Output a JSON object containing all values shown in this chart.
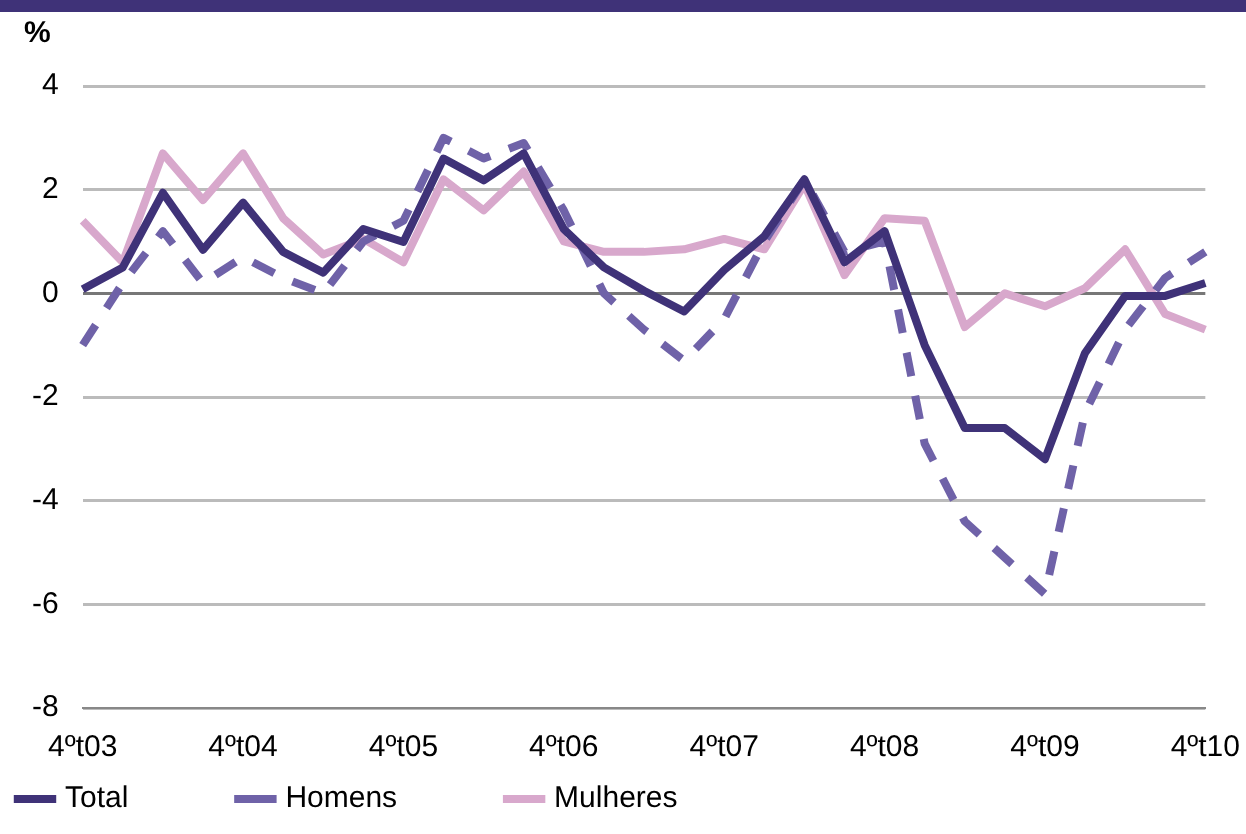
{
  "chart_data": {
    "type": "line",
    "ylabel": "%",
    "categories": [
      "4ºt03",
      null,
      null,
      null,
      "4ºt04",
      null,
      null,
      null,
      "4ºt05",
      null,
      null,
      null,
      "4ºt06",
      null,
      null,
      null,
      "4ºt07",
      null,
      null,
      null,
      "4ºt08",
      null,
      null,
      null,
      "4ºt09",
      null,
      null,
      null,
      "4ºt10"
    ],
    "series": [
      {
        "name": "Total",
        "color": "#3f3278",
        "line_style": "solid",
        "values": [
          0.08,
          0.5,
          1.94,
          0.84,
          1.75,
          0.8,
          0.4,
          1.24,
          0.99,
          2.6,
          2.18,
          2.7,
          1.24,
          0.5,
          0.05,
          -0.35,
          0.45,
          1.1,
          2.2,
          0.6,
          1.2,
          -1.0,
          -2.6,
          -2.6,
          -3.2,
          -1.15,
          -0.05,
          -0.05,
          0.2
        ]
      },
      {
        "name": "Homens",
        "color": "#6f62a8",
        "line_style": "dashed",
        "values": [
          -1.0,
          0.2,
          1.2,
          0.2,
          0.7,
          0.3,
          0.0,
          1.0,
          1.4,
          3.0,
          2.6,
          2.9,
          1.6,
          0.0,
          -0.7,
          -1.3,
          -0.5,
          1.0,
          2.2,
          0.8,
          1.0,
          -2.9,
          -4.4,
          -5.1,
          -5.8,
          -2.3,
          -0.7,
          0.3,
          0.8
        ]
      },
      {
        "name": "Mulheres",
        "color": "#d8a8cc",
        "line_style": "solid",
        "values": [
          1.4,
          0.6,
          2.7,
          1.8,
          2.7,
          1.45,
          0.75,
          1.05,
          0.6,
          2.2,
          1.6,
          2.35,
          1.0,
          0.8,
          0.8,
          0.85,
          1.05,
          0.85,
          2.1,
          0.35,
          1.45,
          1.4,
          -0.65,
          0.0,
          -0.25,
          0.1,
          0.85,
          -0.4,
          -0.7
        ]
      }
    ],
    "ylim": [
      -8,
      4
    ],
    "yticks": [
      -8,
      -6,
      -4,
      -2,
      0,
      2,
      4
    ],
    "grid": "y",
    "legend": "bottom",
    "marker": "none"
  }
}
